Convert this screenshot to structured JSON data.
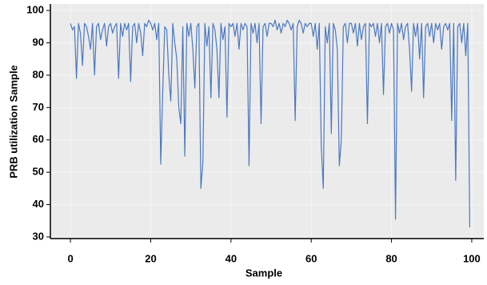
{
  "chart_data": {
    "type": "line",
    "xlabel": "Sample",
    "ylabel": "PRB utilization Sample",
    "x": [
      0,
      0.5,
      1,
      1.5,
      2,
      2.5,
      3,
      3.5,
      4,
      4.5,
      5,
      5.5,
      6,
      6.5,
      7,
      7.5,
      8,
      8.5,
      9,
      9.5,
      10,
      10.5,
      11,
      11.5,
      12,
      12.5,
      13,
      13.5,
      14,
      14.5,
      15,
      15.5,
      16,
      16.5,
      17,
      17.5,
      18,
      18.5,
      19,
      19.5,
      20,
      20.5,
      21,
      21.5,
      22,
      22.5,
      23,
      23.5,
      24,
      24.5,
      25,
      25.5,
      26,
      26.5,
      27,
      27.5,
      28,
      28.5,
      29,
      29.5,
      30,
      30.5,
      31,
      31.5,
      32,
      32.5,
      33,
      33.5,
      34,
      34.5,
      35,
      35.5,
      36,
      36.5,
      37,
      37.5,
      38,
      38.5,
      39,
      39.5,
      40,
      40.5,
      41,
      41.5,
      42,
      42.5,
      43,
      43.5,
      44,
      44.5,
      45,
      45.5,
      46,
      46.5,
      47,
      47.5,
      48,
      48.5,
      49,
      49.5,
      50,
      50.5,
      51,
      51.5,
      52,
      52.5,
      53,
      53.5,
      54,
      54.5,
      55,
      55.5,
      56,
      56.5,
      57,
      57.5,
      58,
      58.5,
      59,
      59.5,
      60,
      60.5,
      61,
      61.5,
      62,
      62.5,
      63,
      63.5,
      64,
      64.5,
      65,
      65.5,
      66,
      66.5,
      67,
      67.5,
      68,
      68.5,
      69,
      69.5,
      70,
      70.5,
      71,
      71.5,
      72,
      72.5,
      73,
      73.5,
      74,
      74.5,
      75,
      75.5,
      76,
      76.5,
      77,
      77.5,
      78,
      78.5,
      79,
      79.5,
      80,
      80.5,
      81,
      81.5,
      82,
      82.5,
      83,
      83.5,
      84,
      84.5,
      85,
      85.5,
      86,
      86.5,
      87,
      87.5,
      88,
      88.5,
      89,
      89.5,
      90,
      90.5,
      91,
      91.5,
      92,
      92.5,
      93,
      93.5,
      94,
      94.5,
      95,
      95.5,
      96,
      96.5,
      97,
      97.5,
      98,
      98.5,
      99,
      99.5
    ],
    "values": [
      96,
      94,
      95,
      79,
      96,
      93,
      83,
      96,
      95,
      92,
      88,
      96,
      80,
      95,
      96,
      91,
      94,
      96,
      89,
      95,
      96,
      93,
      95,
      96,
      79,
      96,
      92,
      96,
      94,
      96,
      78,
      95,
      96,
      90,
      96,
      93,
      86,
      96,
      95,
      97,
      96,
      94,
      96,
      91,
      96,
      52.5,
      75,
      95,
      94,
      80,
      72,
      96,
      90,
      85,
      70,
      65,
      95,
      55,
      96,
      92,
      96,
      88,
      76,
      95,
      96,
      45,
      53,
      96,
      89,
      95,
      73,
      96,
      94,
      88,
      73,
      96,
      91,
      95,
      67,
      96,
      95,
      96,
      92,
      96,
      88,
      96,
      94,
      96,
      95,
      52,
      96,
      93,
      96,
      90,
      96,
      65,
      95,
      96,
      92,
      96,
      96,
      95,
      97,
      94,
      96,
      93,
      96,
      95,
      97,
      96,
      94,
      96,
      66,
      95,
      97,
      96,
      93,
      96,
      95,
      96,
      96,
      92,
      96,
      88,
      96,
      58,
      45,
      95,
      90,
      96,
      62,
      96,
      94,
      88,
      52,
      60,
      95,
      96,
      90,
      96,
      96,
      93,
      96,
      89,
      96,
      91,
      95,
      96,
      65,
      96,
      95,
      96,
      92,
      96,
      90,
      96,
      74,
      95,
      96,
      93,
      96,
      94,
      35.5,
      96,
      93,
      96,
      91,
      95,
      96,
      88,
      75,
      96,
      92,
      96,
      85,
      96,
      73,
      95,
      96,
      92,
      96,
      90,
      96,
      94,
      96,
      88,
      95,
      96,
      94,
      96,
      66,
      96,
      47.5,
      95,
      96,
      90,
      96,
      86,
      96,
      33
    ],
    "color": "#4a78c2",
    "xlim": [
      -5,
      103
    ],
    "xticks": [
      0,
      20,
      40,
      60,
      80,
      100
    ],
    "ylim": [
      29.5,
      102
    ],
    "yticks": [
      30,
      40,
      50,
      60,
      70,
      80,
      90,
      100
    ],
    "grid": true
  }
}
